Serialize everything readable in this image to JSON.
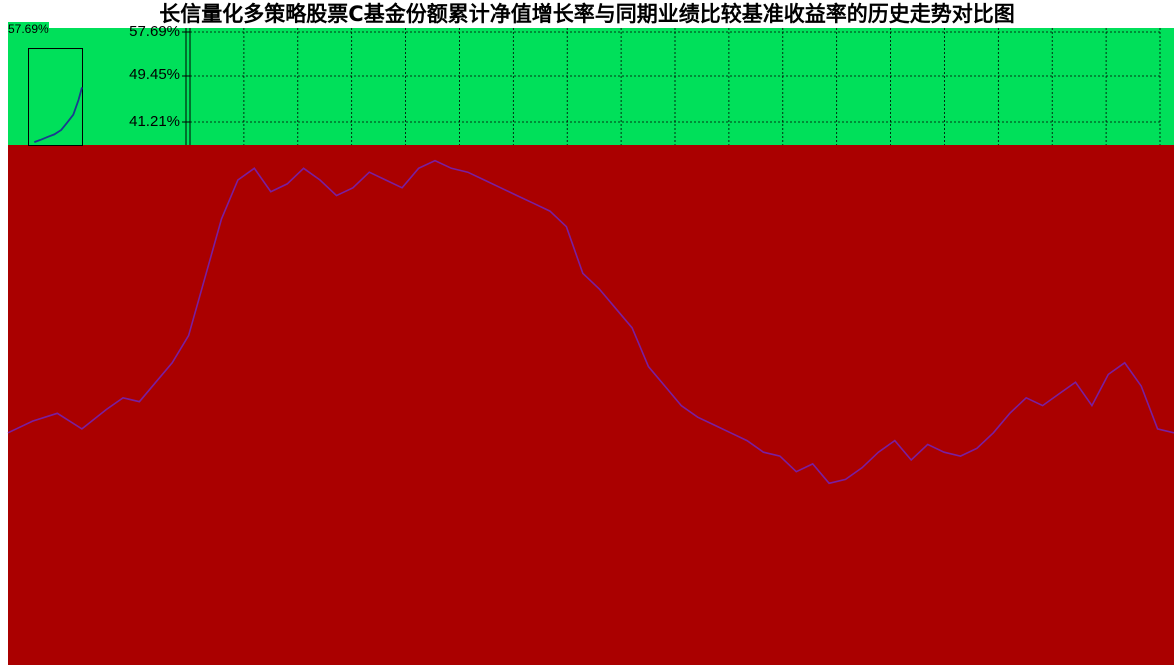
{
  "chart_data": {
    "type": "line",
    "title": "长信量化多策略股票C基金份额累计净值增长率与同期业绩比较基准收益率的历史走势对比图",
    "corner_label": "57.69%",
    "y_tick_labels": [
      "57.69%",
      "49.45%",
      "41.21%"
    ],
    "ylim": [
      41.21,
      57.69
    ],
    "grid": true,
    "series": [
      {
        "color": "#7a1ea0",
        "values": [
          54.1,
          54.4,
          54.6,
          54.2,
          54.7,
          55.0,
          54.9,
          55.4,
          55.9,
          56.6,
          58.1,
          59.6,
          60.6,
          60.9,
          60.3,
          60.5,
          60.9,
          60.6,
          60.2,
          60.4,
          60.8,
          60.6,
          60.4,
          60.9,
          61.1,
          60.9,
          60.8,
          60.6,
          60.4,
          60.2,
          60.0,
          59.8,
          59.4,
          58.2,
          57.8,
          57.3,
          56.8,
          55.8,
          55.3,
          54.8,
          54.5,
          54.3,
          54.1,
          53.9,
          53.6,
          53.5,
          53.1,
          53.3,
          52.8,
          52.9,
          53.2,
          53.6,
          53.9,
          53.4,
          53.8,
          53.6,
          53.5,
          53.7,
          54.1,
          54.6,
          55.0,
          54.8,
          55.1,
          55.4,
          54.8,
          55.6,
          55.9,
          55.3,
          54.2,
          54.1
        ],
        "x": [
          0,
          1.5,
          3,
          4.5,
          6,
          7,
          8,
          9,
          10,
          11,
          12,
          13,
          14,
          15,
          16,
          17,
          18,
          19,
          20,
          21,
          22,
          23,
          24,
          25,
          26,
          27,
          28,
          29,
          30,
          31,
          32,
          33,
          34,
          35,
          36,
          37,
          38,
          39,
          40,
          41,
          42,
          43,
          44,
          45,
          46,
          47,
          48,
          49,
          50,
          51,
          52,
          53,
          54,
          55,
          56,
          57,
          58,
          59,
          60,
          61,
          62,
          63,
          64,
          65,
          66,
          67,
          68,
          69,
          70,
          71
        ]
      },
      {
        "color": "#1a3a8f",
        "values": [
          41.2,
          41.6,
          42.1,
          42.6,
          43.4,
          44.8,
          46.2,
          48.9,
          51.2
        ],
        "x": [
          0.5,
          1.2,
          2,
          2.8,
          3.6,
          4.3,
          5,
          5.6,
          6
        ]
      }
    ]
  }
}
